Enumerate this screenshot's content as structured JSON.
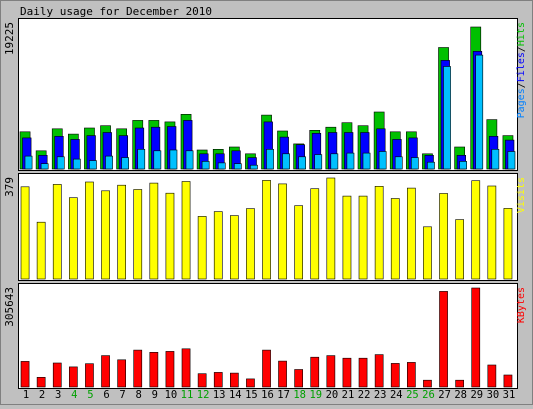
{
  "chart_data": {
    "type": "bar",
    "title": "Daily usage for December 2010",
    "categories": [
      "1",
      "2",
      "3",
      "4",
      "5",
      "6",
      "7",
      "8",
      "9",
      "10",
      "11",
      "12",
      "13",
      "14",
      "15",
      "16",
      "17",
      "18",
      "19",
      "20",
      "21",
      "22",
      "23",
      "24",
      "25",
      "26",
      "27",
      "28",
      "29",
      "30",
      "31"
    ],
    "weekend_days": [
      "4",
      "5",
      "11",
      "12",
      "18",
      "19",
      "25",
      "26"
    ],
    "panels": [
      {
        "id": "hits",
        "ymax": 19225,
        "ymax_label": "19225",
        "side_label": [
          {
            "text": "Pages",
            "color": "#0080ff"
          },
          {
            "text": "/",
            "color": "#000000"
          },
          {
            "text": "Files",
            "color": "#0000ff"
          },
          {
            "text": "/",
            "color": "#000000"
          },
          {
            "text": "Hits",
            "color": "#00c000"
          }
        ],
        "series": [
          {
            "name": "Hits",
            "color": "#00c000",
            "values": [
              4900,
              2400,
              5300,
              4600,
              5400,
              5700,
              5300,
              6400,
              6400,
              6200,
              7200,
              2500,
              2600,
              2900,
              2000,
              7100,
              5000,
              3300,
              5100,
              5500,
              6100,
              5700,
              7500,
              4900,
              4900,
              2000,
              16000,
              2900,
              18700,
              6500,
              4400
            ]
          },
          {
            "name": "Files",
            "color": "#0000ff",
            "values": [
              4100,
              1800,
              4300,
              3900,
              4400,
              4800,
              4400,
              5400,
              5500,
              5600,
              6400,
              2000,
              2000,
              2400,
              1500,
              6200,
              4200,
              3200,
              4700,
              4800,
              4800,
              4800,
              5300,
              3900,
              4100,
              1800,
              14300,
              1800,
              15500,
              4300,
              3800
            ]
          },
          {
            "name": "Pages",
            "color": "#00c0ff",
            "values": [
              1700,
              700,
              1600,
              1300,
              1100,
              1700,
              1500,
              2600,
              2400,
              2500,
              2400,
              1000,
              800,
              700,
              500,
              2600,
              2000,
              1600,
              1900,
              2000,
              2100,
              2100,
              2300,
              1600,
              1500,
              900,
              13500,
              1000,
              15000,
              2600,
              2300
            ]
          }
        ]
      },
      {
        "id": "visits",
        "ymax": 379,
        "ymax_label": "379",
        "side_label": [
          {
            "text": "Visits",
            "color": "#ffff00"
          }
        ],
        "series": [
          {
            "name": "Visits",
            "color": "#ffff00",
            "values": [
              346,
              213,
              355,
              305,
              364,
              331,
              352,
              336,
              360,
              322,
              366,
              235,
              253,
              238,
              264,
              370,
              357,
              275,
              339,
              379,
              311,
              311,
              348,
              302,
              341,
              196,
              321,
              223,
              369,
              349,
              265
            ]
          }
        ]
      },
      {
        "id": "kbytes",
        "ymax": 305643,
        "ymax_label": "305643",
        "side_label": [
          {
            "text": "KBytes",
            "color": "#ff0000"
          }
        ],
        "series": [
          {
            "name": "KBytes",
            "color": "#ff0000",
            "values": [
              79000,
              30000,
              74000,
              62000,
              72000,
              97000,
              84000,
              114000,
              107000,
              110000,
              118000,
              41000,
              45000,
              43000,
              25000,
              114000,
              80000,
              54000,
              92000,
              97000,
              89000,
              89000,
              100000,
              73000,
              76000,
              21000,
              295000,
              21000,
              305643,
              68000,
              37000
            ]
          }
        ]
      }
    ]
  },
  "colors": {
    "background": "#c0c0c0",
    "plot_background": "#ffffff",
    "frame": "#000000",
    "weekday_label": "#000000",
    "weekend_label": "#00a000"
  }
}
